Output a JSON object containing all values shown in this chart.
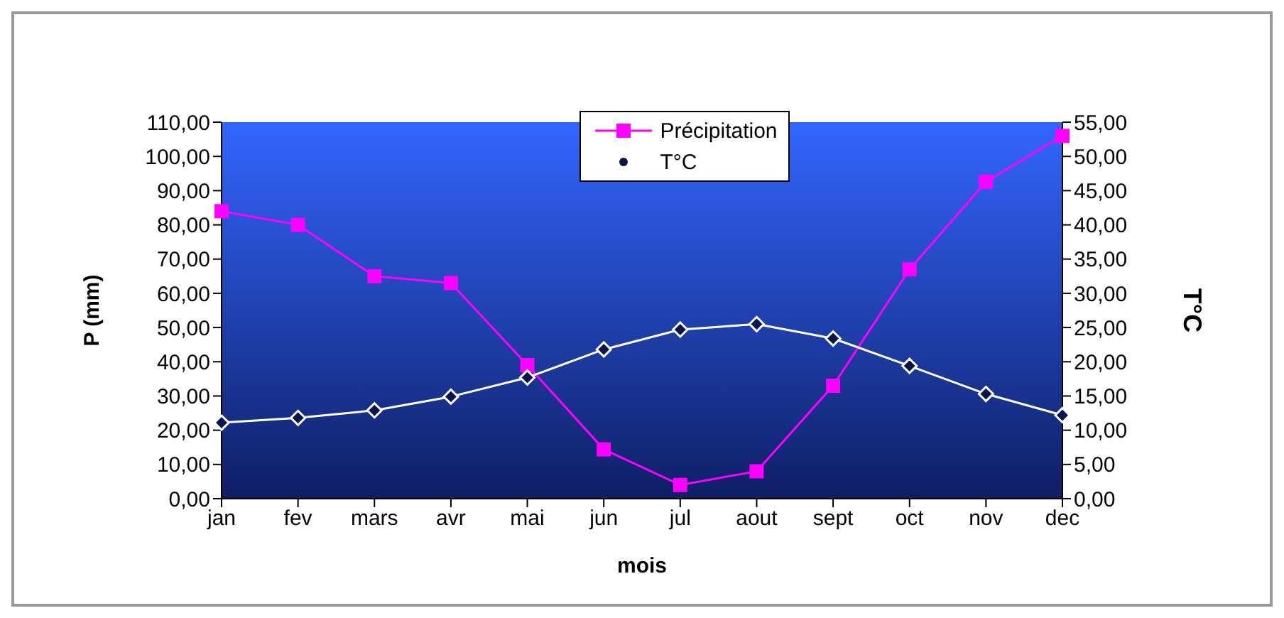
{
  "chart_data": {
    "type": "line",
    "xlabel": "mois",
    "ylabel": "P (mm)",
    "y2label": "T°C",
    "categories": [
      "jan",
      "fev",
      "mars",
      "avr",
      "mai",
      "jun",
      "jul",
      "aout",
      "sept",
      "oct",
      "nov",
      "dec"
    ],
    "series": [
      {
        "name": "Précipitation",
        "color": "#ff00ff",
        "marker": "square",
        "values": [
          84,
          80,
          65,
          63,
          39,
          14.4,
          4,
          8,
          33,
          67,
          92.6,
          106
        ]
      },
      {
        "name": "T°C",
        "color": "#ffffff",
        "marker": "diamond",
        "axis": "y2",
        "values": [
          11.1,
          11.8,
          12.9,
          14.9,
          17.7,
          21.8,
          24.7,
          25.5,
          23.4,
          19.4,
          15.3,
          12.2
        ]
      }
    ],
    "ylim": [
      0,
      110
    ],
    "yticks": [
      {
        "value": 0,
        "label": "0,00"
      },
      {
        "value": 10,
        "label": "10,00"
      },
      {
        "value": 20,
        "label": "20,00"
      },
      {
        "value": 30,
        "label": "30,00"
      },
      {
        "value": 40,
        "label": "40,00"
      },
      {
        "value": 50,
        "label": "50,00"
      },
      {
        "value": 60,
        "label": "60,00"
      },
      {
        "value": 70,
        "label": "70,00"
      },
      {
        "value": 80,
        "label": "80,00"
      },
      {
        "value": 90,
        "label": "90,00"
      },
      {
        "value": 100,
        "label": "100,00"
      },
      {
        "value": 110,
        "label": "110,00"
      }
    ],
    "y2lim": [
      0,
      55
    ],
    "y2ticks": [
      {
        "value": 0,
        "label": "0,00"
      },
      {
        "value": 5,
        "label": "5,00"
      },
      {
        "value": 10,
        "label": "10,00"
      },
      {
        "value": 15,
        "label": "15,00"
      },
      {
        "value": 20,
        "label": "20,00"
      },
      {
        "value": 25,
        "label": "25,00"
      },
      {
        "value": 30,
        "label": "30,00"
      },
      {
        "value": 35,
        "label": "35,00"
      },
      {
        "value": 40,
        "label": "40,00"
      },
      {
        "value": 45,
        "label": "45,00"
      },
      {
        "value": 50,
        "label": "50,00"
      },
      {
        "value": 55,
        "label": "55,00"
      }
    ],
    "legend": "top",
    "grid": false
  }
}
